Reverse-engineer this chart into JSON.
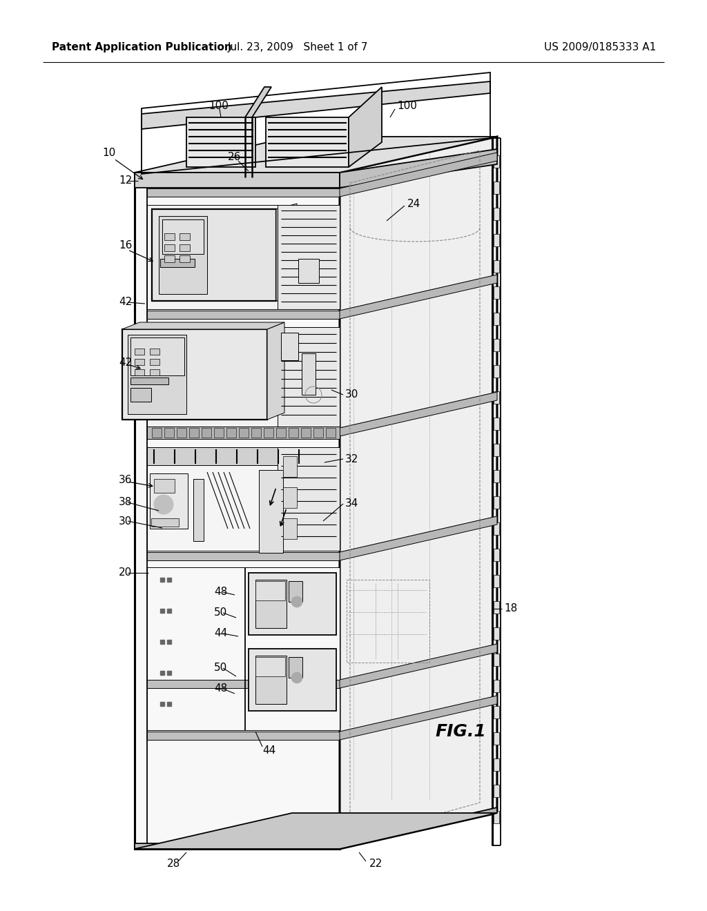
{
  "bg_color": "#ffffff",
  "header_left": "Patent Application Publication",
  "header_mid": "Jul. 23, 2009   Sheet 1 of 7",
  "header_right": "US 2009/0185333 A1",
  "fig_label": "FIG.1",
  "lc": "#000000",
  "lw": 1.3,
  "tlw": 0.7,
  "thklw": 2.2,
  "fs": 11,
  "fs_fig": 18,
  "fs_hdr": 11
}
